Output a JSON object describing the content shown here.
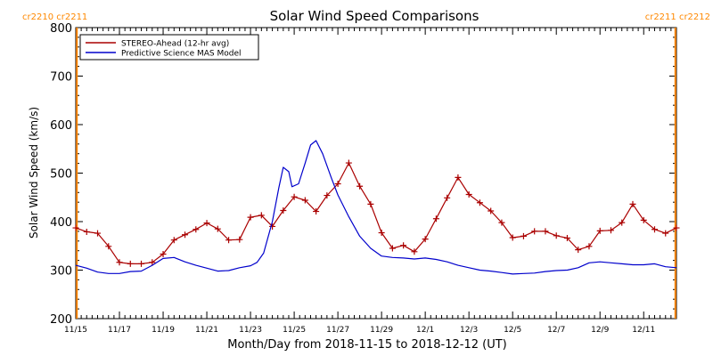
{
  "chart_data": {
    "type": "line",
    "title": "Solar Wind Speed Comparisons",
    "xlabel": "Month/Day from 2018-11-15 to 2018-12-12 (UT)",
    "ylabel": "Solar Wind Speed (km/s)",
    "xlim": [
      0,
      27.5
    ],
    "ylim": [
      200,
      800
    ],
    "y_ticks": [
      200,
      300,
      400,
      500,
      600,
      700,
      800
    ],
    "x_ticks": [
      {
        "day": 0,
        "label": "11/15"
      },
      {
        "day": 2,
        "label": "11/17"
      },
      {
        "day": 4,
        "label": "11/19"
      },
      {
        "day": 6,
        "label": "11/21"
      },
      {
        "day": 8,
        "label": "11/23"
      },
      {
        "day": 10,
        "label": "11/25"
      },
      {
        "day": 12,
        "label": "11/27"
      },
      {
        "day": 14,
        "label": "11/29"
      },
      {
        "day": 16,
        "label": "12/1"
      },
      {
        "day": 18,
        "label": "12/3"
      },
      {
        "day": 20,
        "label": "12/5"
      },
      {
        "day": 22,
        "label": "12/7"
      },
      {
        "day": 24,
        "label": "12/9"
      },
      {
        "day": 26,
        "label": "12/11"
      }
    ],
    "legend_position": "top-left",
    "carrington_markers": [
      {
        "day": 0.05,
        "labels": [
          "cr2210",
          "cr2211"
        ],
        "color": "#ff8800",
        "label_side": "left"
      },
      {
        "day": 27.45,
        "labels": [
          "cr2211",
          "cr2212"
        ],
        "color": "#ff8800",
        "label_side": "right"
      }
    ],
    "series": [
      {
        "name": "STEREO-Ahead (12-hr avg)",
        "color": "#aa0000",
        "marker": "plus",
        "points": [
          [
            0.0,
            387
          ],
          [
            0.5,
            379
          ],
          [
            1.0,
            376
          ],
          [
            1.5,
            349
          ],
          [
            2.0,
            316
          ],
          [
            2.5,
            313
          ],
          [
            3.0,
            313
          ],
          [
            3.5,
            316
          ],
          [
            4.0,
            333
          ],
          [
            4.5,
            362
          ],
          [
            5.0,
            373
          ],
          [
            5.5,
            384
          ],
          [
            6.0,
            397
          ],
          [
            6.5,
            385
          ],
          [
            7.0,
            362
          ],
          [
            7.5,
            363
          ],
          [
            8.0,
            409
          ],
          [
            8.5,
            413
          ],
          [
            9.0,
            390
          ],
          [
            9.5,
            423
          ],
          [
            10.0,
            451
          ],
          [
            10.5,
            444
          ],
          [
            11.0,
            421
          ],
          [
            11.5,
            454
          ],
          [
            12.0,
            478
          ],
          [
            12.5,
            521
          ],
          [
            13.0,
            473
          ],
          [
            13.5,
            436
          ],
          [
            14.0,
            377
          ],
          [
            14.5,
            345
          ],
          [
            15.0,
            351
          ],
          [
            15.5,
            338
          ],
          [
            16.0,
            364
          ],
          [
            16.5,
            406
          ],
          [
            17.0,
            449
          ],
          [
            17.5,
            491
          ],
          [
            18.0,
            456
          ],
          [
            18.5,
            439
          ],
          [
            19.0,
            422
          ],
          [
            19.5,
            398
          ],
          [
            20.0,
            367
          ],
          [
            20.5,
            370
          ],
          [
            21.0,
            380
          ],
          [
            21.5,
            380
          ],
          [
            22.0,
            371
          ],
          [
            22.5,
            366
          ],
          [
            23.0,
            342
          ],
          [
            23.5,
            349
          ],
          [
            24.0,
            381
          ],
          [
            24.5,
            382
          ],
          [
            25.0,
            398
          ],
          [
            25.5,
            436
          ],
          [
            26.0,
            403
          ],
          [
            26.5,
            384
          ],
          [
            27.0,
            376
          ],
          [
            27.5,
            387
          ]
        ]
      },
      {
        "name": "Predictive Science MAS Model",
        "color": "#0000cc",
        "marker": "none",
        "points": [
          [
            0.0,
            310
          ],
          [
            0.5,
            304
          ],
          [
            1.0,
            296
          ],
          [
            1.5,
            293
          ],
          [
            2.0,
            293
          ],
          [
            2.5,
            297
          ],
          [
            3.0,
            298
          ],
          [
            3.5,
            310
          ],
          [
            4.0,
            324
          ],
          [
            4.5,
            326
          ],
          [
            5.0,
            317
          ],
          [
            5.5,
            310
          ],
          [
            6.0,
            304
          ],
          [
            6.5,
            298
          ],
          [
            7.0,
            299
          ],
          [
            7.5,
            305
          ],
          [
            8.0,
            309
          ],
          [
            8.3,
            316
          ],
          [
            8.6,
            335
          ],
          [
            9.0,
            400
          ],
          [
            9.3,
            470
          ],
          [
            9.5,
            512
          ],
          [
            9.75,
            503
          ],
          [
            9.9,
            472
          ],
          [
            10.2,
            478
          ],
          [
            10.5,
            520
          ],
          [
            10.75,
            558
          ],
          [
            11.0,
            567
          ],
          [
            11.3,
            540
          ],
          [
            11.7,
            490
          ],
          [
            12.0,
            455
          ],
          [
            12.5,
            410
          ],
          [
            13.0,
            370
          ],
          [
            13.5,
            345
          ],
          [
            14.0,
            329
          ],
          [
            14.5,
            326
          ],
          [
            15.0,
            325
          ],
          [
            15.5,
            323
          ],
          [
            16.0,
            325
          ],
          [
            16.5,
            322
          ],
          [
            17.0,
            317
          ],
          [
            17.5,
            310
          ],
          [
            18.0,
            305
          ],
          [
            18.5,
            300
          ],
          [
            19.0,
            298
          ],
          [
            19.5,
            295
          ],
          [
            20.0,
            292
          ],
          [
            20.5,
            293
          ],
          [
            21.0,
            294
          ],
          [
            21.5,
            297
          ],
          [
            22.0,
            299
          ],
          [
            22.5,
            300
          ],
          [
            23.0,
            305
          ],
          [
            23.5,
            315
          ],
          [
            24.0,
            317
          ],
          [
            24.5,
            315
          ],
          [
            25.0,
            313
          ],
          [
            25.5,
            311
          ],
          [
            26.0,
            311
          ],
          [
            26.5,
            313
          ],
          [
            27.0,
            307
          ],
          [
            27.5,
            305
          ]
        ]
      }
    ]
  }
}
